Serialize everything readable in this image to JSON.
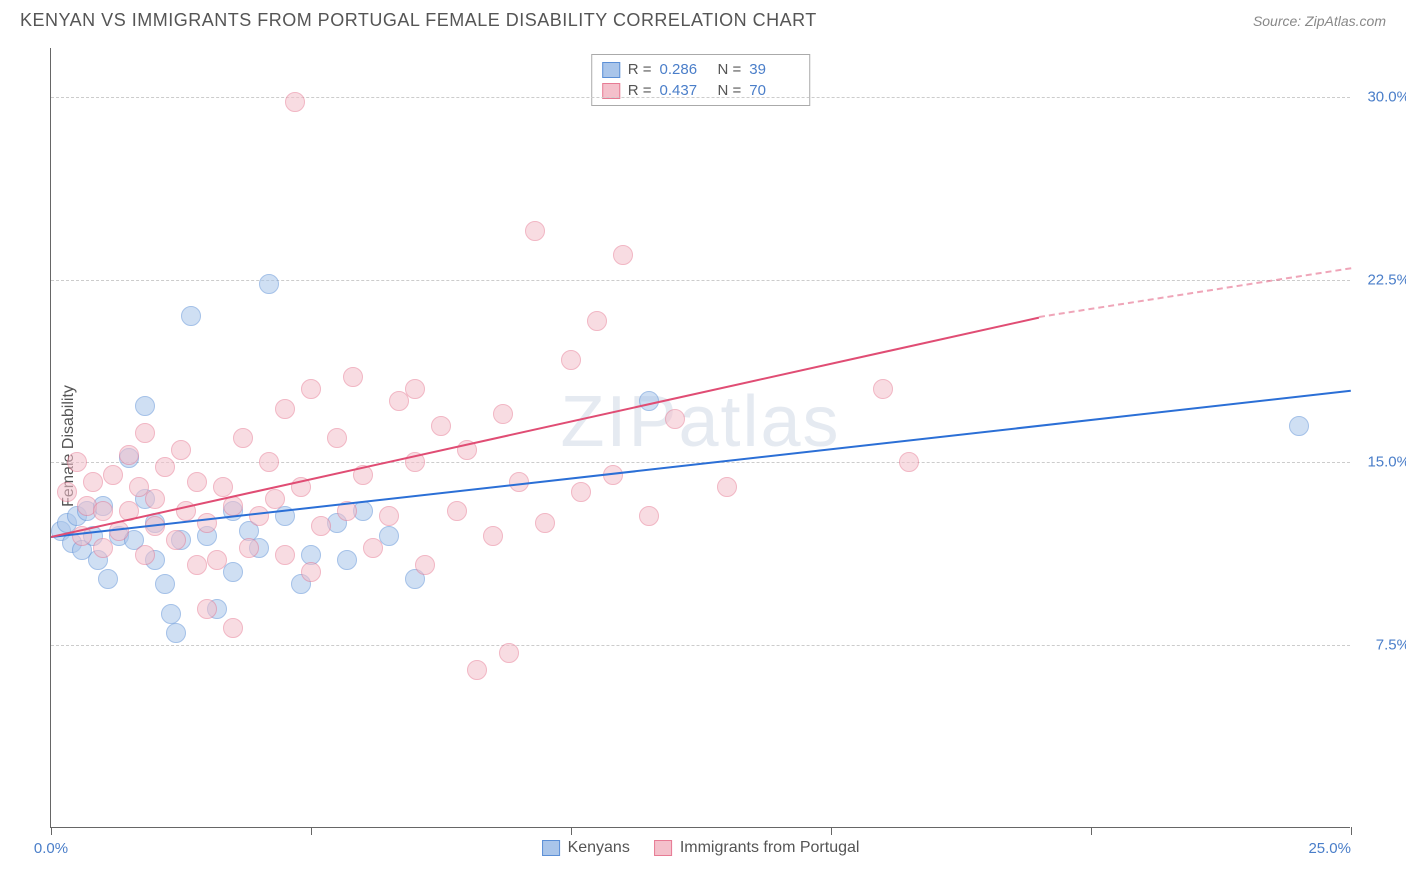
{
  "header": {
    "title": "KENYAN VS IMMIGRANTS FROM PORTUGAL FEMALE DISABILITY CORRELATION CHART",
    "source": "Source: ZipAtlas.com"
  },
  "watermark": "ZIPatlas",
  "chart": {
    "type": "scatter",
    "ylabel": "Female Disability",
    "background_color": "#ffffff",
    "grid_color": "#cccccc",
    "axis_color": "#666666",
    "tick_label_color": "#4a7ec9",
    "text_color": "#555555",
    "tick_fontsize": 15,
    "label_fontsize": 16,
    "xlim": [
      0,
      25
    ],
    "ylim": [
      0,
      32
    ],
    "yticks": [
      {
        "value": 7.5,
        "label": "7.5%"
      },
      {
        "value": 15.0,
        "label": "15.0%"
      },
      {
        "value": 22.5,
        "label": "22.5%"
      },
      {
        "value": 30.0,
        "label": "30.0%"
      }
    ],
    "xticks_major": [
      0,
      5,
      10,
      15,
      20,
      25
    ],
    "xtick_labels": [
      {
        "value": 0,
        "label": "0.0%"
      },
      {
        "value": 25,
        "label": "25.0%"
      }
    ],
    "marker_radius": 10,
    "marker_opacity": 0.55,
    "series": [
      {
        "name": "Kenyans",
        "fill_color": "#a9c5ea",
        "stroke_color": "#5b8fd6",
        "line_color": "#2b6fd6",
        "R": "0.286",
        "N": "39",
        "trend": {
          "x1": 0,
          "y1": 12.0,
          "x2": 25,
          "y2": 18.0,
          "dash_from_x": 25
        },
        "points": [
          [
            0.2,
            12.2
          ],
          [
            0.3,
            12.5
          ],
          [
            0.4,
            11.7
          ],
          [
            0.5,
            12.8
          ],
          [
            0.6,
            11.4
          ],
          [
            0.7,
            13.0
          ],
          [
            0.8,
            12.0
          ],
          [
            0.9,
            11.0
          ],
          [
            1.0,
            13.2
          ],
          [
            1.1,
            10.2
          ],
          [
            1.3,
            12.0
          ],
          [
            1.5,
            15.2
          ],
          [
            1.6,
            11.8
          ],
          [
            1.8,
            13.5
          ],
          [
            1.8,
            17.3
          ],
          [
            2.0,
            11.0
          ],
          [
            2.0,
            12.5
          ],
          [
            2.2,
            10.0
          ],
          [
            2.3,
            8.8
          ],
          [
            2.4,
            8.0
          ],
          [
            2.5,
            11.8
          ],
          [
            2.7,
            21.0
          ],
          [
            3.0,
            12.0
          ],
          [
            3.2,
            9.0
          ],
          [
            3.5,
            10.5
          ],
          [
            3.5,
            13.0
          ],
          [
            3.8,
            12.2
          ],
          [
            4.0,
            11.5
          ],
          [
            4.2,
            22.3
          ],
          [
            4.5,
            12.8
          ],
          [
            4.8,
            10.0
          ],
          [
            5.0,
            11.2
          ],
          [
            5.5,
            12.5
          ],
          [
            5.7,
            11.0
          ],
          [
            6.0,
            13.0
          ],
          [
            6.5,
            12.0
          ],
          [
            7.0,
            10.2
          ],
          [
            11.5,
            17.5
          ],
          [
            24.0,
            16.5
          ]
        ]
      },
      {
        "name": "Immigrants from Portugal",
        "fill_color": "#f4c0cb",
        "stroke_color": "#e77b94",
        "line_color": "#e04d74",
        "R": "0.437",
        "N": "70",
        "trend": {
          "x1": 0,
          "y1": 12.0,
          "x2": 19,
          "y2": 21.0,
          "dash_from_x": 19,
          "dash_to_x": 25,
          "dash_to_y": 23.0
        },
        "points": [
          [
            0.3,
            13.8
          ],
          [
            0.5,
            15.0
          ],
          [
            0.6,
            12.0
          ],
          [
            0.7,
            13.2
          ],
          [
            0.8,
            14.2
          ],
          [
            1.0,
            11.5
          ],
          [
            1.0,
            13.0
          ],
          [
            1.2,
            14.5
          ],
          [
            1.3,
            12.2
          ],
          [
            1.5,
            15.3
          ],
          [
            1.5,
            13.0
          ],
          [
            1.7,
            14.0
          ],
          [
            1.8,
            11.2
          ],
          [
            1.8,
            16.2
          ],
          [
            2.0,
            13.5
          ],
          [
            2.0,
            12.4
          ],
          [
            2.2,
            14.8
          ],
          [
            2.4,
            11.8
          ],
          [
            2.5,
            15.5
          ],
          [
            2.6,
            13.0
          ],
          [
            2.8,
            10.8
          ],
          [
            2.8,
            14.2
          ],
          [
            3.0,
            9.0
          ],
          [
            3.0,
            12.5
          ],
          [
            3.2,
            11.0
          ],
          [
            3.3,
            14.0
          ],
          [
            3.5,
            8.2
          ],
          [
            3.5,
            13.2
          ],
          [
            3.7,
            16.0
          ],
          [
            3.8,
            11.5
          ],
          [
            4.0,
            12.8
          ],
          [
            4.2,
            15.0
          ],
          [
            4.3,
            13.5
          ],
          [
            4.5,
            17.2
          ],
          [
            4.5,
            11.2
          ],
          [
            4.7,
            29.8
          ],
          [
            4.8,
            14.0
          ],
          [
            5.0,
            10.5
          ],
          [
            5.0,
            18.0
          ],
          [
            5.2,
            12.4
          ],
          [
            5.5,
            16.0
          ],
          [
            5.7,
            13.0
          ],
          [
            5.8,
            18.5
          ],
          [
            6.0,
            14.5
          ],
          [
            6.2,
            11.5
          ],
          [
            6.5,
            12.8
          ],
          [
            6.7,
            17.5
          ],
          [
            7.0,
            15.0
          ],
          [
            7.0,
            18.0
          ],
          [
            7.2,
            10.8
          ],
          [
            7.5,
            16.5
          ],
          [
            7.8,
            13.0
          ],
          [
            8.0,
            15.5
          ],
          [
            8.2,
            6.5
          ],
          [
            8.5,
            12.0
          ],
          [
            8.7,
            17.0
          ],
          [
            8.8,
            7.2
          ],
          [
            9.0,
            14.2
          ],
          [
            9.3,
            24.5
          ],
          [
            9.5,
            12.5
          ],
          [
            10.0,
            19.2
          ],
          [
            10.2,
            13.8
          ],
          [
            10.5,
            20.8
          ],
          [
            10.8,
            14.5
          ],
          [
            11.0,
            23.5
          ],
          [
            11.5,
            12.8
          ],
          [
            12.0,
            16.8
          ],
          [
            13.0,
            14.0
          ],
          [
            16.0,
            18.0
          ],
          [
            16.5,
            15.0
          ]
        ]
      }
    ]
  },
  "legend_top": {
    "rows": [
      {
        "series_idx": 0,
        "r_label": "R =",
        "n_label": "N ="
      },
      {
        "series_idx": 1,
        "r_label": "R =",
        "n_label": "N ="
      }
    ]
  },
  "legend_bottom": {
    "items": [
      {
        "series_idx": 0
      },
      {
        "series_idx": 1
      }
    ]
  }
}
